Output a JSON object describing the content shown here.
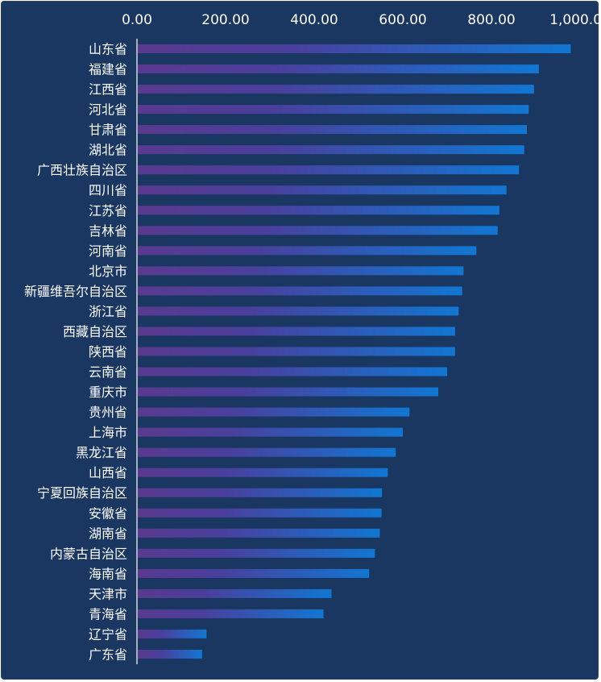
{
  "chart_data": {
    "type": "bar",
    "orientation": "horizontal",
    "title": "",
    "xlabel": "",
    "ylabel": "",
    "xlim": [
      0,
      1000
    ],
    "x_ticks": [
      "0.00",
      "200.00",
      "400.00",
      "600.00",
      "800.00",
      "1,000.00"
    ],
    "x_axis_position": "top",
    "grid": false,
    "legend": false,
    "categories": [
      "山东省",
      "福建省",
      "江西省",
      "河北省",
      "甘肃省",
      "湖北省",
      "广西壮族自治区",
      "四川省",
      "江苏省",
      "吉林省",
      "河南省",
      "北京市",
      "新疆维吾尔自治区",
      "浙江省",
      "西藏自治区",
      "陕西省",
      "云南省",
      "重庆市",
      "贵州省",
      "上海市",
      "黑龙江省",
      "山西省",
      "宁夏回族自治区",
      "安徽省",
      "湖南省",
      "内蒙古自治区",
      "海南省",
      "天津市",
      "青海省",
      "辽宁省",
      "广东省"
    ],
    "values": [
      979,
      907,
      896,
      884,
      880,
      874,
      862,
      834,
      818,
      814,
      766,
      737,
      734,
      726,
      718,
      718,
      700,
      680,
      615,
      600,
      584,
      566,
      553,
      552,
      548,
      537,
      524,
      439,
      421,
      157,
      147
    ],
    "colors": {
      "background": "#193761",
      "bar_start": "#5a3a8f",
      "bar_end": "#1177d2",
      "text": "#ffffff",
      "axis": "#ffffff"
    }
  }
}
